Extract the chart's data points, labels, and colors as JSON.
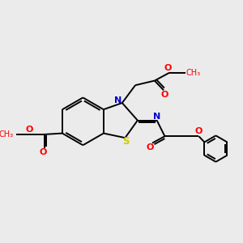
{
  "bg_color": "#ebebeb",
  "bond_color": "#000000",
  "n_color": "#0000cc",
  "s_color": "#cccc00",
  "o_color": "#ff0000",
  "lw": 1.4,
  "inner_off": 0.1,
  "figsize": [
    3.0,
    3.0
  ],
  "dpi": 100,
  "xlim": [
    0,
    10
  ],
  "ylim": [
    0,
    10
  ]
}
